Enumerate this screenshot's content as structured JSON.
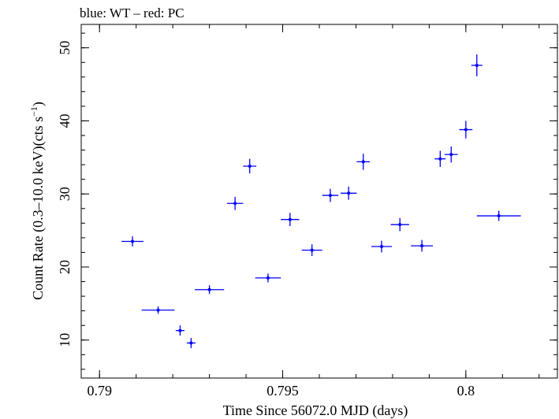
{
  "chart_data": {
    "type": "scatter",
    "title": "blue: WT – red: PC",
    "xlabel": "Time Since 56072.0 MJD (days)",
    "ylabel_main": "Count Rate (0.3–10.0 keV)(cts s",
    "ylabel_sup": "−1",
    "ylabel_close": ")",
    "xlim": [
      0.7895,
      0.8025
    ],
    "ylim": [
      4.8,
      53.2
    ],
    "x_ticks": [
      0.79,
      0.795,
      0.8
    ],
    "x_tick_labels": [
      "0.79",
      "0.795",
      "0.8"
    ],
    "y_ticks": [
      10,
      20,
      30,
      40,
      50
    ],
    "y_tick_labels": [
      "10",
      "20",
      "30",
      "40",
      "50"
    ],
    "x_minor_step": 0.001,
    "y_minor_step": 2,
    "series": [
      {
        "color": "#0000ff",
        "points": [
          {
            "x": 0.7909,
            "xerr": 0.0003,
            "y": 23.5,
            "yerr": 0.7
          },
          {
            "x": 0.7916,
            "xerr": 0.00045,
            "y": 14.1,
            "yerr": 0.5
          },
          {
            "x": 0.7922,
            "xerr": 0.00012,
            "y": 11.3,
            "yerr": 0.7
          },
          {
            "x": 0.7925,
            "xerr": 0.00012,
            "y": 9.6,
            "yerr": 0.7
          },
          {
            "x": 0.793,
            "xerr": 0.0004,
            "y": 16.9,
            "yerr": 0.6
          },
          {
            "x": 0.7937,
            "xerr": 0.00022,
            "y": 28.7,
            "yerr": 0.9
          },
          {
            "x": 0.7941,
            "xerr": 0.00018,
            "y": 33.8,
            "yerr": 1.0
          },
          {
            "x": 0.7946,
            "xerr": 0.00035,
            "y": 18.5,
            "yerr": 0.6
          },
          {
            "x": 0.7952,
            "xerr": 0.00025,
            "y": 26.5,
            "yerr": 0.9
          },
          {
            "x": 0.7958,
            "xerr": 0.00028,
            "y": 22.3,
            "yerr": 0.8
          },
          {
            "x": 0.7963,
            "xerr": 0.00022,
            "y": 29.8,
            "yerr": 0.9
          },
          {
            "x": 0.7968,
            "xerr": 0.00022,
            "y": 30.1,
            "yerr": 0.9
          },
          {
            "x": 0.7972,
            "xerr": 0.00018,
            "y": 34.4,
            "yerr": 1.1
          },
          {
            "x": 0.7977,
            "xerr": 0.00028,
            "y": 22.8,
            "yerr": 0.8
          },
          {
            "x": 0.7982,
            "xerr": 0.00025,
            "y": 25.8,
            "yerr": 0.9
          },
          {
            "x": 0.7988,
            "xerr": 0.0003,
            "y": 22.9,
            "yerr": 0.8
          },
          {
            "x": 0.7993,
            "xerr": 0.00015,
            "y": 34.8,
            "yerr": 1.1
          },
          {
            "x": 0.7996,
            "xerr": 0.00018,
            "y": 35.4,
            "yerr": 1.1
          },
          {
            "x": 0.8,
            "xerr": 0.00018,
            "y": 38.8,
            "yerr": 1.2
          },
          {
            "x": 0.8003,
            "xerr": 0.00015,
            "y": 47.6,
            "yerr": 1.5
          },
          {
            "x": 0.8009,
            "xerr": 0.0006,
            "y": 27.0,
            "yerr": 0.7
          }
        ]
      }
    ]
  }
}
